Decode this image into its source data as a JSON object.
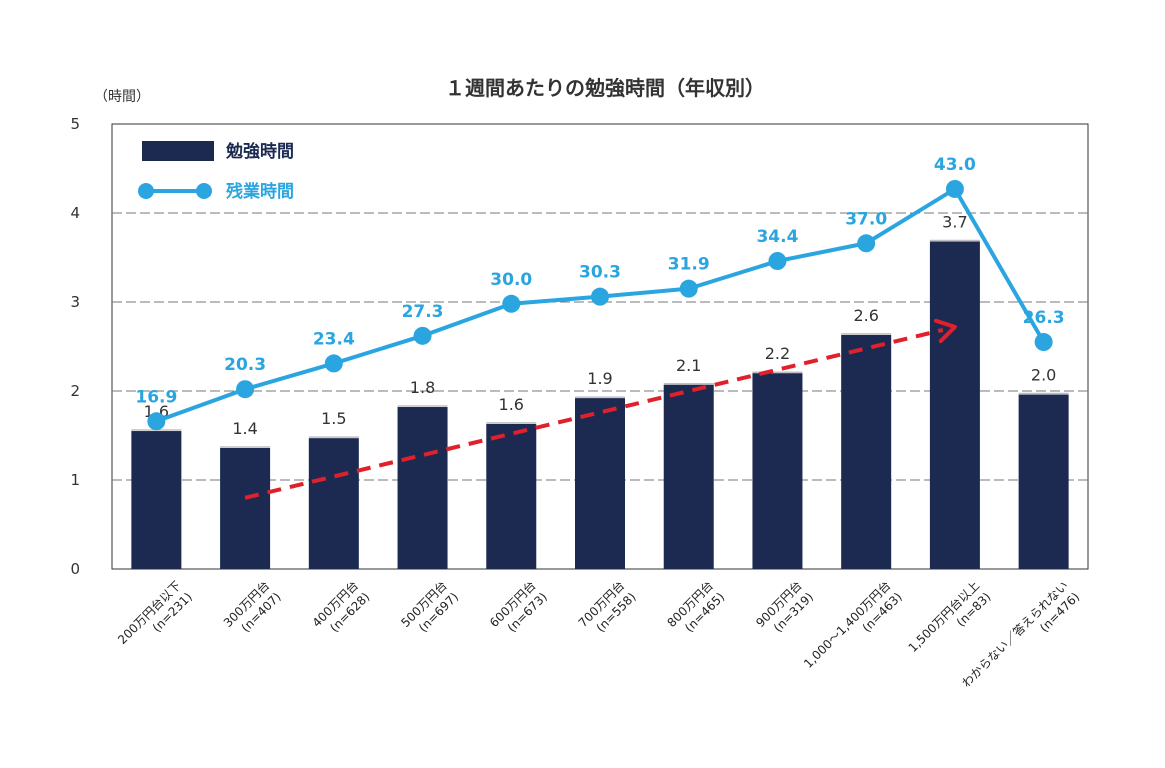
{
  "chart_data": {
    "type": "bar",
    "title": "１週間あたりの勉強時間（年収別）",
    "y_unit_label": "（時間）",
    "ylim": [
      0,
      5
    ],
    "yticks": [
      "0",
      "1",
      "2",
      "3",
      "4",
      "5"
    ],
    "grid": true,
    "legend_position": "top-left",
    "categories": [
      [
        "200万円台以下",
        "(n=231)"
      ],
      [
        "300万円台",
        "(n=407)"
      ],
      [
        "400万円台",
        "(n=628)"
      ],
      [
        "500万円台",
        "(n=697)"
      ],
      [
        "600万円台",
        "(n=673)"
      ],
      [
        "700万円台",
        "(n=558)"
      ],
      [
        "800万円台",
        "(n=465)"
      ],
      [
        "900万円台",
        "(n=319)"
      ],
      [
        "1,000～1,400万円台",
        "(n=463)"
      ],
      [
        "1,500万円台以上",
        "(n=83)"
      ],
      [
        "わからない／答えられない",
        "(n=476)"
      ]
    ],
    "series": [
      {
        "name": "勉強時間",
        "type": "bar",
        "color": "#1c2a52",
        "values": [
          1.55,
          1.36,
          1.47,
          1.82,
          1.63,
          1.92,
          2.07,
          2.2,
          2.63,
          3.68,
          1.96
        ],
        "labels": [
          "1.6",
          "1.4",
          "1.5",
          "1.8",
          "1.6",
          "1.9",
          "2.1",
          "2.2",
          "2.6",
          "3.7",
          "2.0"
        ]
      },
      {
        "name": "残業時間",
        "type": "line",
        "color": "#2aa5e0",
        "values": [
          16.9,
          20.3,
          23.4,
          27.3,
          30.0,
          30.3,
          31.9,
          34.4,
          37.0,
          43.0,
          26.3
        ],
        "labels": [
          "16.9",
          "20.3",
          "23.4",
          "27.3",
          "30.0",
          "30.3",
          "31.9",
          "34.4",
          "37.0",
          "43.0",
          "26.3"
        ],
        "plot_y": [
          1.66,
          2.02,
          2.31,
          2.62,
          2.98,
          3.06,
          3.15,
          3.46,
          3.66,
          4.27,
          2.55
        ]
      }
    ],
    "trend_arrow": {
      "color": "#e0202a",
      "style": "dashed",
      "from": {
        "category_index": 1,
        "y": 0.8
      },
      "to": {
        "category_index": 9,
        "y": 2.72
      }
    }
  }
}
